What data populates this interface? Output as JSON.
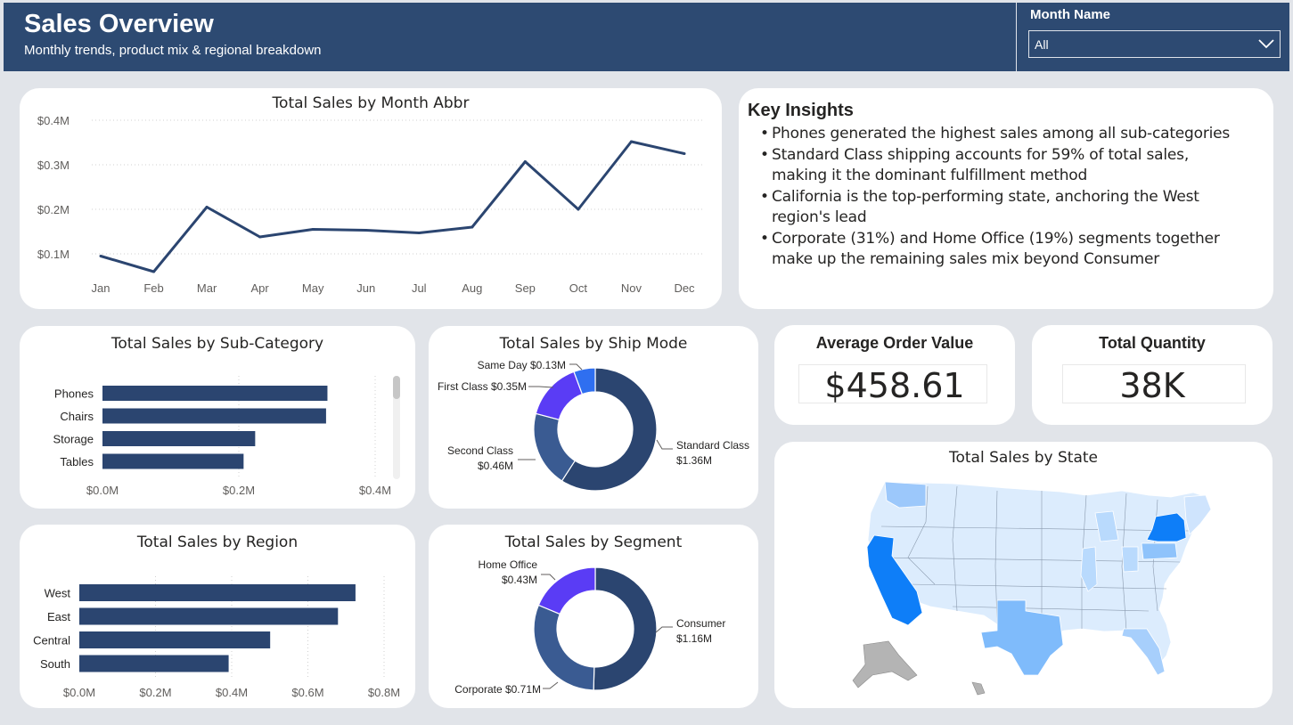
{
  "header": {
    "title": "Sales Overview",
    "subtitle": "Monthly trends, product mix & regional breakdown"
  },
  "slicer": {
    "label": "Month Name",
    "value": "All",
    "dropdown_icon": "chevron-down-icon"
  },
  "insights": {
    "title": "Key Insights",
    "items": [
      "Phones generated the highest sales among all sub-categories",
      "Standard Class shipping accounts for 59% of total sales, making it the dominant fulfillment method",
      "California is the top-performing state, anchoring the West region's lead",
      "Corporate (31%) and Home Office (19%) segments together make up the remaining sales mix beyond Consumer"
    ]
  },
  "kpis": {
    "aov": {
      "label": "Average Order Value",
      "value": "$458.61"
    },
    "quantity": {
      "label": "Total Quantity",
      "value": "38K"
    }
  },
  "colors": {
    "header": "#2d4a72",
    "primary": "#2b4570",
    "secondary": "#3a5b92",
    "accent_purple": "#5a3cf5",
    "accent_blue": "#2f6ff0",
    "map_top": "#0e7ef8",
    "map_light": "#dcecfd"
  },
  "chart_data": [
    {
      "id": "month",
      "type": "line",
      "title": "Total Sales by Month Abbr",
      "categories": [
        "Jan",
        "Feb",
        "Mar",
        "Apr",
        "May",
        "Jun",
        "Jul",
        "Aug",
        "Sep",
        "Oct",
        "Nov",
        "Dec"
      ],
      "values": [
        0.095,
        0.06,
        0.205,
        0.138,
        0.155,
        0.153,
        0.147,
        0.16,
        0.307,
        0.2,
        0.352,
        0.325
      ],
      "yticks": [
        "$0.1M",
        "$0.2M",
        "$0.3M",
        "$0.4M"
      ],
      "ytick_values": [
        0.1,
        0.2,
        0.3,
        0.4
      ],
      "ylim": [
        0.05,
        0.4
      ],
      "grid": true
    },
    {
      "id": "subcat",
      "type": "bar",
      "orientation": "horizontal",
      "title": "Total Sales by Sub-Category",
      "categories": [
        "Phones",
        "Chairs",
        "Storage",
        "Tables"
      ],
      "values": [
        0.33,
        0.328,
        0.224,
        0.207
      ],
      "xticks": [
        "$0.0M",
        "$0.2M",
        "$0.4M"
      ],
      "xtick_values": [
        0,
        0.2,
        0.4
      ],
      "xlim": [
        0,
        0.4
      ],
      "grid": true
    },
    {
      "id": "shipmode",
      "type": "pie",
      "donut": true,
      "title": "Total Sales by Ship Mode",
      "labels": [
        "Standard Class",
        "Second Class",
        "First Class",
        "Same Day"
      ],
      "value_labels": [
        "$1.36M",
        "$0.46M",
        "$0.35M",
        "$0.13M"
      ],
      "values": [
        1.36,
        0.46,
        0.35,
        0.13
      ]
    },
    {
      "id": "region",
      "type": "bar",
      "orientation": "horizontal",
      "title": "Total Sales by Region",
      "categories": [
        "West",
        "East",
        "Central",
        "South"
      ],
      "values": [
        0.725,
        0.679,
        0.501,
        0.392
      ],
      "xticks": [
        "$0.0M",
        "$0.2M",
        "$0.4M",
        "$0.6M",
        "$0.8M"
      ],
      "xtick_values": [
        0,
        0.2,
        0.4,
        0.6,
        0.8
      ],
      "xlim": [
        0,
        0.8
      ],
      "grid": true
    },
    {
      "id": "segment",
      "type": "pie",
      "donut": true,
      "title": "Total Sales by Segment",
      "labels": [
        "Consumer",
        "Corporate",
        "Home Office"
      ],
      "value_labels": [
        "$1.16M",
        "$0.71M",
        "$0.43M"
      ],
      "values": [
        1.16,
        0.71,
        0.43
      ]
    },
    {
      "id": "state",
      "type": "map",
      "title": "Total Sales by State",
      "highlighted_states": [
        "California",
        "New York",
        "Texas",
        "Washington",
        "Pennsylvania"
      ]
    }
  ]
}
